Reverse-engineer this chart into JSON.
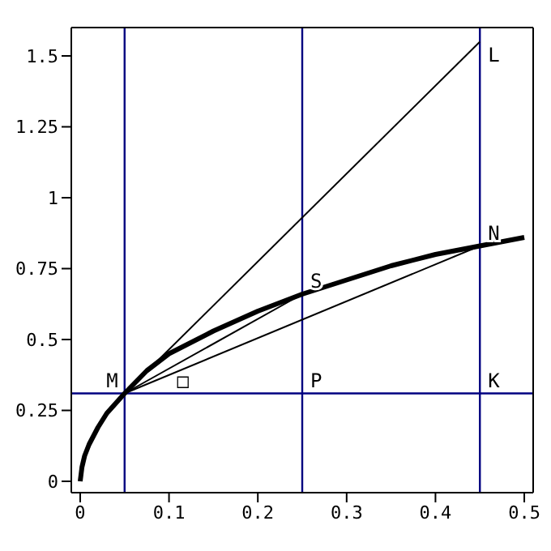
{
  "chart_data": {
    "type": "line",
    "xlim": [
      -0.01,
      0.51
    ],
    "ylim": [
      -0.04,
      1.6
    ],
    "xticks": [
      0,
      0.1,
      0.2,
      0.3,
      0.4,
      0.5
    ],
    "yticks": [
      0,
      0.25,
      0.5,
      0.75,
      1,
      1.25,
      1.5
    ],
    "grid": false,
    "marker": "none",
    "line_style": "solid",
    "series": [
      {
        "color": "#000000",
        "x": [
          0,
          0.002,
          0.005,
          0.01,
          0.02,
          0.03,
          0.05,
          0.075,
          0.1,
          0.15,
          0.2,
          0.25,
          0.3,
          0.35,
          0.4,
          0.45,
          0.5
        ],
        "values": [
          0,
          0.05,
          0.09,
          0.13,
          0.19,
          0.24,
          0.31,
          0.39,
          0.45,
          0.53,
          0.6,
          0.66,
          0.71,
          0.76,
          0.8,
          0.83,
          0.86
        ]
      },
      {
        "color": "#000000",
        "x": [
          0.05,
          0.45
        ],
        "values": [
          0.31,
          1.55
        ]
      },
      {
        "color": "#000000",
        "x": [
          0.05,
          0.25
        ],
        "values": [
          0.31,
          0.66
        ]
      },
      {
        "color": "#000000",
        "x": [
          0.05,
          0.45
        ],
        "values": [
          0.31,
          0.83
        ]
      }
    ],
    "ref_lines": [
      {
        "axis": "x",
        "value": 0.05,
        "color": "#000080"
      },
      {
        "axis": "x",
        "value": 0.25,
        "color": "#000080"
      },
      {
        "axis": "x",
        "value": 0.45,
        "color": "#000080"
      },
      {
        "axis": "y",
        "value": 0.31,
        "color": "#000080"
      }
    ],
    "annotations": [
      {
        "text": "M",
        "x": 0.05,
        "y": 0.31
      },
      {
        "text": "□",
        "x": 0.1,
        "y": 0.31
      },
      {
        "text": "P",
        "x": 0.25,
        "y": 0.31
      },
      {
        "text": "K",
        "x": 0.45,
        "y": 0.31
      },
      {
        "text": "S",
        "x": 0.25,
        "y": 0.66
      },
      {
        "text": "N",
        "x": 0.45,
        "y": 0.83
      },
      {
        "text": "L",
        "x": 0.45,
        "y": 1.55
      }
    ]
  }
}
